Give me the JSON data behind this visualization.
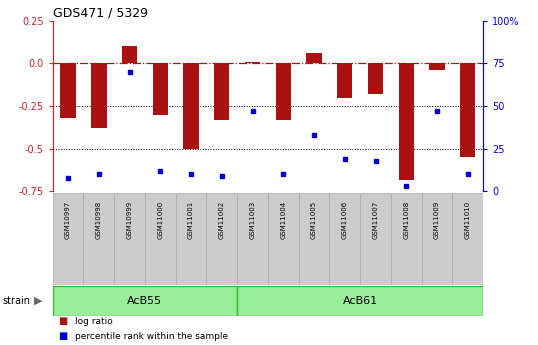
{
  "title": "GDS471 / 5329",
  "samples": [
    "GSM10997",
    "GSM10998",
    "GSM10999",
    "GSM11000",
    "GSM11001",
    "GSM11002",
    "GSM11003",
    "GSM11004",
    "GSM11005",
    "GSM11006",
    "GSM11007",
    "GSM11008",
    "GSM11009",
    "GSM11010"
  ],
  "log_ratios": [
    -0.32,
    -0.38,
    0.1,
    -0.3,
    -0.5,
    -0.33,
    0.01,
    -0.33,
    0.06,
    -0.2,
    -0.18,
    -0.68,
    -0.04,
    -0.55
  ],
  "percentile_ranks": [
    8,
    10,
    70,
    12,
    10,
    9,
    47,
    10,
    33,
    19,
    18,
    3,
    47,
    10
  ],
  "bar_color": "#aa1111",
  "dot_color": "#0000cc",
  "group1_label": "AcB55",
  "group1_samples": 6,
  "group2_label": "AcB61",
  "group2_samples": 8,
  "ylim": [
    -0.75,
    0.25
  ],
  "yticks_left": [
    -0.75,
    -0.5,
    -0.25,
    0.0,
    0.25
  ],
  "yticks_right_vals": [
    0,
    25,
    50,
    75,
    100
  ],
  "hline_zero": 0.0,
  "hline_m025": -0.25,
  "hline_m05": -0.5,
  "strain_label": "strain",
  "legend_log_ratio": "log ratio",
  "legend_percentile": "percentile rank within the sample",
  "bg_color": "#ffffff",
  "plot_bg": "#ffffff",
  "axis_left_color": "#cc2222",
  "axis_right_color": "#0000cc",
  "group_bg_color": "#99ee99",
  "group_border_color": "#33bb33",
  "sample_bg_color": "#cccccc",
  "percentile_scale": 100
}
